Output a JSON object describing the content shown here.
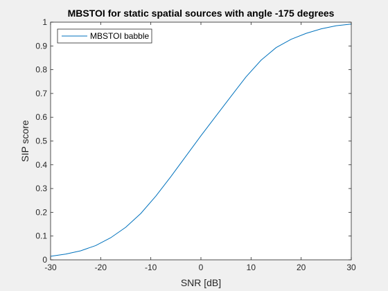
{
  "chart_data": {
    "type": "line",
    "title": "MBSTOI for static spatial sources with angle -175 degrees",
    "xlabel": "SNR [dB]",
    "ylabel": "SIP score",
    "xlim": [
      -30,
      30
    ],
    "ylim": [
      0,
      1
    ],
    "xticks": [
      -30,
      -20,
      -10,
      0,
      10,
      20,
      30
    ],
    "yticks": [
      0,
      0.1,
      0.2,
      0.3,
      0.4,
      0.5,
      0.6,
      0.7,
      0.8,
      0.9,
      1
    ],
    "grid": false,
    "legend_position": "top-left",
    "series": [
      {
        "name": "MBSTOI babble",
        "color": "#0072bd",
        "x": [
          -30,
          -27,
          -24,
          -21,
          -18,
          -15,
          -12,
          -9,
          -6,
          -3,
          0,
          3,
          6,
          9,
          12,
          15,
          18,
          21,
          24,
          27,
          30
        ],
        "y": [
          0.015,
          0.024,
          0.038,
          0.06,
          0.093,
          0.137,
          0.195,
          0.268,
          0.35,
          0.436,
          0.522,
          0.605,
          0.688,
          0.77,
          0.84,
          0.893,
          0.928,
          0.953,
          0.972,
          0.985,
          0.992
        ]
      }
    ]
  }
}
